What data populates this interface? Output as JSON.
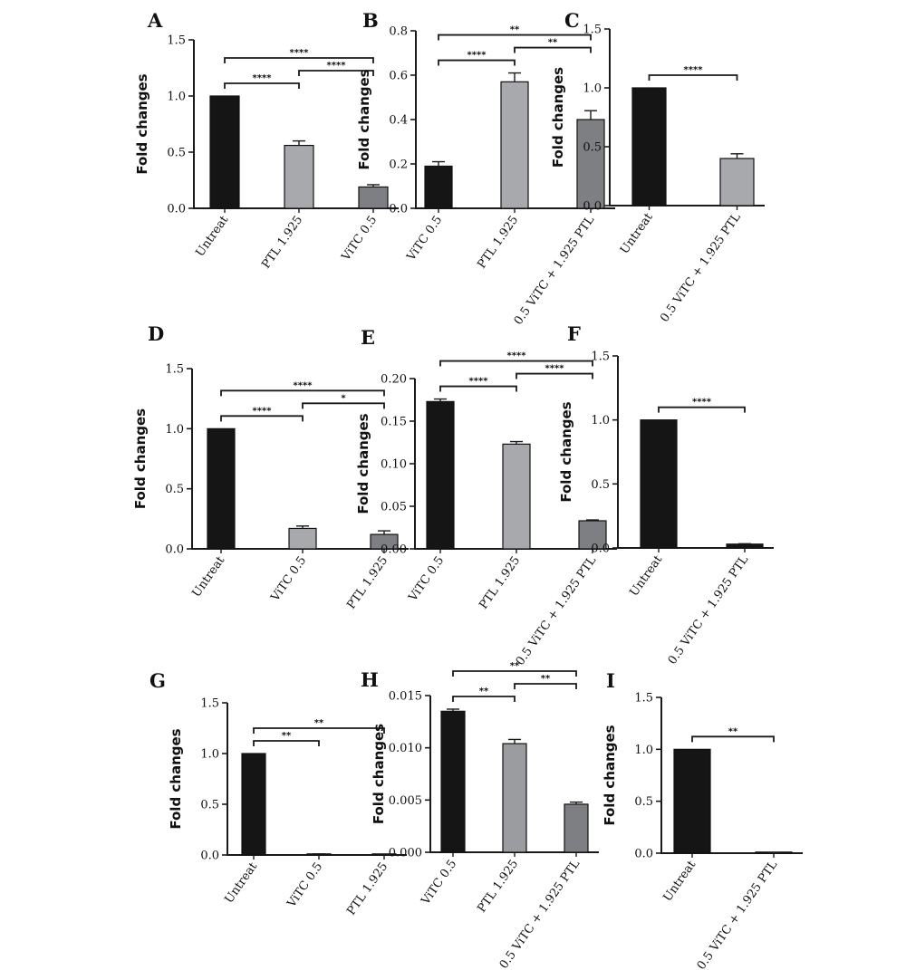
{
  "figure": {
    "colors": {
      "background": "#ffffff",
      "axis": "#1a1a1a",
      "bar_black": "#151515",
      "bar_light": "#a7a9ad",
      "bar_mid": "#7d7f82",
      "bar_mid_light": "#9a9ca0"
    }
  },
  "chart_data": [
    {
      "panel": "A",
      "type": "bar",
      "title": "",
      "ylabel": "Fold changes",
      "xlabel": "",
      "ylim": [
        0,
        1.5
      ],
      "yticks": [
        "0.0",
        "0.5",
        "1.0",
        "1.5"
      ],
      "categories": [
        "Untreat",
        "PTL 1.925",
        "ViTC 0.5"
      ],
      "values": [
        1.0,
        0.56,
        0.19
      ],
      "errors": [
        0,
        0.04,
        0.02
      ],
      "bar_colors": [
        "#151515",
        "#a7a9ad",
        "#7d7f82"
      ],
      "significance": [
        {
          "from": 0,
          "to": 1,
          "label": "****"
        },
        {
          "from": 1,
          "to": 2,
          "label": "****"
        },
        {
          "from": 0,
          "to": 2,
          "label": "****"
        }
      ]
    },
    {
      "panel": "B",
      "type": "bar",
      "title": "",
      "ylabel": "Fold changes",
      "xlabel": "",
      "ylim": [
        0,
        0.8
      ],
      "yticks": [
        "0.0",
        "0.2",
        "0.4",
        "0.6",
        "0.8"
      ],
      "categories": [
        "ViTC 0.5",
        "PTL 1.925",
        "0.5 ViTC + 1.925 PTL"
      ],
      "values": [
        0.19,
        0.57,
        0.4
      ],
      "errors": [
        0.02,
        0.04,
        0.04
      ],
      "bar_colors": [
        "#151515",
        "#a7a9ad",
        "#7d7f82"
      ],
      "significance": [
        {
          "from": 0,
          "to": 1,
          "label": "****"
        },
        {
          "from": 1,
          "to": 2,
          "label": "**"
        },
        {
          "from": 0,
          "to": 2,
          "label": "**"
        }
      ]
    },
    {
      "panel": "C",
      "type": "bar",
      "title": "",
      "ylabel": "Fold changes",
      "xlabel": "",
      "ylim": [
        0,
        1.5
      ],
      "yticks": [
        "0.0",
        "0.5",
        "1.0",
        "1.5"
      ],
      "categories": [
        "Untreat",
        "0.5 ViTC + 1.925 PTL"
      ],
      "values": [
        1.0,
        0.4
      ],
      "errors": [
        0,
        0.04
      ],
      "bar_colors": [
        "#151515",
        "#a7a9ad"
      ],
      "significance": [
        {
          "from": 0,
          "to": 1,
          "label": "****"
        }
      ]
    },
    {
      "panel": "D",
      "type": "bar",
      "title": "",
      "ylabel": "Fold changes",
      "xlabel": "",
      "ylim": [
        0,
        1.5
      ],
      "yticks": [
        "0.0",
        "0.5",
        "1.0",
        "1.5"
      ],
      "categories": [
        "Untreat",
        "ViTC 0.5",
        "PTL 1.925"
      ],
      "values": [
        1.0,
        0.17,
        0.12
      ],
      "errors": [
        0,
        0.02,
        0.03
      ],
      "bar_colors": [
        "#151515",
        "#a7a9ad",
        "#7d7f82"
      ],
      "significance": [
        {
          "from": 0,
          "to": 1,
          "label": "****"
        },
        {
          "from": 1,
          "to": 2,
          "label": "*"
        },
        {
          "from": 0,
          "to": 2,
          "label": "****"
        }
      ]
    },
    {
      "panel": "E",
      "type": "bar",
      "title": "",
      "ylabel": "Fold changes",
      "xlabel": "",
      "ylim": [
        0,
        0.2
      ],
      "yticks": [
        "0.00",
        "0.05",
        "0.10",
        "0.15",
        "0.20"
      ],
      "categories": [
        "ViTC 0.5",
        "PTL 1.925",
        "0.5 ViTC + 1.925 PTL"
      ],
      "values": [
        0.173,
        0.123,
        0.033
      ],
      "errors": [
        0.003,
        0.003,
        0.001
      ],
      "bar_colors": [
        "#151515",
        "#a7a9ad",
        "#7d7f82"
      ],
      "significance": [
        {
          "from": 0,
          "to": 1,
          "label": "****"
        },
        {
          "from": 0,
          "to": 2,
          "label": "****"
        },
        {
          "from": 1,
          "to": 2,
          "label": "****"
        }
      ]
    },
    {
      "panel": "F",
      "type": "bar",
      "title": "",
      "ylabel": "Fold changes",
      "xlabel": "",
      "ylim": [
        0,
        1.5
      ],
      "yticks": [
        "0.0",
        "0.5",
        "1.0",
        "1.5"
      ],
      "categories": [
        "Untreat",
        "0.5 ViTC + 1.925 PTL"
      ],
      "values": [
        1.0,
        0.03
      ],
      "errors": [
        0,
        0.003
      ],
      "bar_colors": [
        "#151515",
        "#151515"
      ],
      "significance": [
        {
          "from": 0,
          "to": 1,
          "label": "****"
        }
      ]
    },
    {
      "panel": "G",
      "type": "bar",
      "title": "",
      "ylabel": "Fold changes",
      "xlabel": "",
      "ylim": [
        0,
        1.5
      ],
      "yticks": [
        "0.0",
        "0.5",
        "1.0",
        "1.5"
      ],
      "categories": [
        "Untreat",
        "ViTC 0.5",
        "PTL 1.925"
      ],
      "values": [
        1.0,
        0.01,
        0.005
      ],
      "errors": [
        0,
        0.001,
        0.001
      ],
      "bar_colors": [
        "#151515",
        "#151515",
        "#151515"
      ],
      "significance": [
        {
          "from": 0,
          "to": 1,
          "label": "**"
        },
        {
          "from": 0,
          "to": 2,
          "label": "**"
        }
      ]
    },
    {
      "panel": "H",
      "type": "bar",
      "title": "",
      "ylabel": "Fold changes",
      "xlabel": "",
      "ylim": [
        0,
        0.015
      ],
      "yticks": [
        "0.000",
        "0.005",
        "0.010",
        "0.015"
      ],
      "categories": [
        "ViTC 0.5",
        "PTL 1.925",
        "0.5 ViTC + 1.925 PTL"
      ],
      "values": [
        0.0135,
        0.0104,
        0.0046
      ],
      "errors": [
        0.0002,
        0.0004,
        0.0002
      ],
      "bar_colors": [
        "#151515",
        "#9a9ca0",
        "#7d7f82"
      ],
      "significance": [
        {
          "from": 0,
          "to": 1,
          "label": "**"
        },
        {
          "from": 0,
          "to": 2,
          "label": "**"
        },
        {
          "from": 1,
          "to": 2,
          "label": "**"
        }
      ]
    },
    {
      "panel": "I",
      "type": "bar",
      "title": "",
      "ylabel": "Fold changes",
      "xlabel": "",
      "ylim": [
        0,
        1.5
      ],
      "yticks": [
        "0.0",
        "0.5",
        "1.0",
        "1.5"
      ],
      "categories": [
        "Untreat",
        "0.5 ViTC + 1.925 PTL"
      ],
      "values": [
        1.0,
        0.005
      ],
      "errors": [
        0,
        0.001
      ],
      "bar_colors": [
        "#151515",
        "#151515"
      ],
      "significance": [
        {
          "from": 0,
          "to": 1,
          "label": "**"
        }
      ]
    }
  ]
}
